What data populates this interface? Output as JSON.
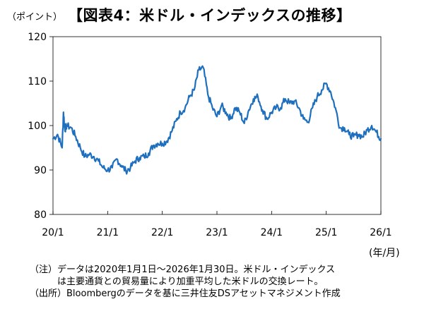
{
  "header": {
    "unit": "（ポイント）",
    "title": "【図表4：米ドル・インデックスの推移】"
  },
  "axis": {
    "period_label": "(年/月)"
  },
  "notes": {
    "note_label": "（注）",
    "note_line1": "データは2020年1月1日～2026年1月30日。米ドル・インデックス",
    "note_line2": "は主要通貨との貿易量により加重平均した米ドルの交換レート。",
    "source_label": "（出所）",
    "source_text": "Bloombergのデータを基に三井住友DSアセットマネジメント作成"
  },
  "chart_data": {
    "type": "line",
    "title": "【図表4：米ドル・インデックスの推移】",
    "ylabel": "（ポイント）",
    "xlabel": "(年/月)",
    "ylim": [
      80,
      120
    ],
    "yticks": [
      "80",
      "90",
      "100",
      "110",
      "120"
    ],
    "xticks": [
      "20/1",
      "21/1",
      "22/1",
      "23/1",
      "24/1",
      "25/1",
      "26/1"
    ],
    "line_color": "#1f6fbf",
    "grid": false,
    "series": [
      {
        "x": [
          "2020-01",
          "2020-02",
          "2020-03",
          "2020-03",
          "2020-03",
          "2020-04",
          "2020-05",
          "2020-06",
          "2020-07",
          "2020-08",
          "2020-09",
          "2020-10",
          "2020-11",
          "2020-12",
          "2021-01",
          "2021-02",
          "2021-03",
          "2021-04",
          "2021-05",
          "2021-06",
          "2021-07",
          "2021-08",
          "2021-09",
          "2021-10",
          "2021-11",
          "2021-12",
          "2022-01",
          "2022-02",
          "2022-03",
          "2022-04",
          "2022-05",
          "2022-06",
          "2022-07",
          "2022-08",
          "2022-09",
          "2022-10",
          "2022-11",
          "2022-12",
          "2023-01",
          "2023-02",
          "2023-03",
          "2023-04",
          "2023-05",
          "2023-06",
          "2023-07",
          "2023-08",
          "2023-09",
          "2023-10",
          "2023-11",
          "2023-12",
          "2024-01",
          "2024-02",
          "2024-03",
          "2024-04",
          "2024-05",
          "2024-06",
          "2024-07",
          "2024-08",
          "2024-09",
          "2024-10",
          "2024-11",
          "2024-12",
          "2025-01",
          "2025-02",
          "2025-03",
          "2025-04",
          "2025-05",
          "2025-06",
          "2025-07",
          "2025-08",
          "2025-09",
          "2025-10",
          "2025-11",
          "2025-12",
          "2026-01"
        ],
        "values": [
          97,
          98,
          95,
          103,
          99,
          100,
          99.5,
          97.5,
          95,
          93,
          93.5,
          93,
          92,
          90.5,
          90,
          90.5,
          92.5,
          91,
          89.8,
          90.5,
          92,
          92.8,
          93,
          93.8,
          95.5,
          96,
          96,
          96.5,
          98.5,
          101,
          103,
          104,
          106.5,
          108,
          112.5,
          113,
          107,
          104,
          102,
          104.5,
          103,
          101.5,
          104,
          103,
          100.5,
          103.5,
          106,
          106.5,
          103.5,
          101.5,
          103,
          104,
          104,
          106,
          105,
          105.5,
          104,
          101.5,
          100.8,
          104,
          106.5,
          108,
          109.5,
          107.5,
          104,
          99.5,
          99.5,
          98,
          97.5,
          98,
          97.5,
          99,
          100,
          98.5,
          97
        ]
      }
    ]
  }
}
